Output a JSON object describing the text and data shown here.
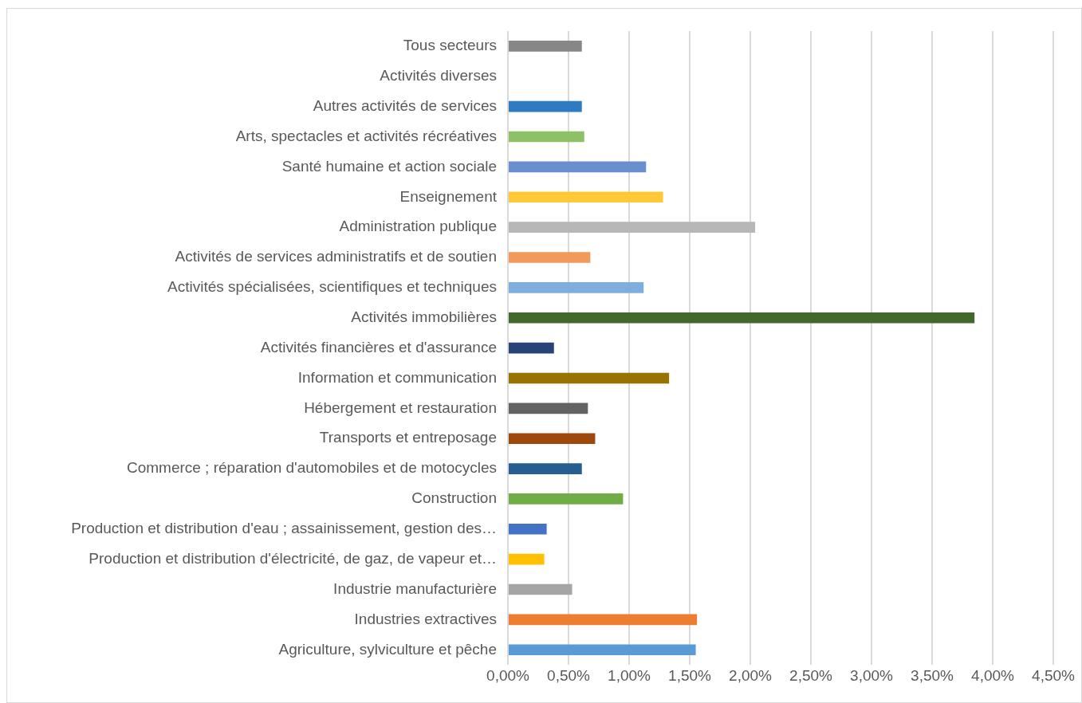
{
  "chart_data": {
    "type": "bar",
    "orientation": "horizontal",
    "categories": [
      "Tous secteurs",
      "Activités diverses",
      "Autres activités de services",
      "Arts, spectacles et activités récréatives",
      "Santé humaine et action sociale",
      "Enseignement",
      "Administration publique",
      "Activités de services administratifs et de soutien",
      "Activités spécialisées, scientifiques et techniques",
      "Activités immobilières",
      "Activités financières et d'assurance",
      "Information et communication",
      "Hébergement et restauration",
      "Transports et entreposage",
      "Commerce ; réparation d'automobiles et de motocycles",
      "Construction",
      "Production et distribution d'eau ; assainissement, gestion des…",
      "Production et distribution d'électricité, de gaz, de vapeur et…",
      "Industrie manufacturière",
      "Industries extractives",
      "Agriculture, sylviculture et pêche"
    ],
    "values": [
      0.61,
      null,
      0.61,
      0.63,
      1.14,
      1.28,
      2.04,
      0.68,
      1.12,
      3.85,
      0.38,
      1.33,
      0.66,
      0.72,
      0.61,
      0.95,
      0.32,
      0.3,
      0.53,
      1.56,
      1.55
    ],
    "colors": [
      "#878787",
      "#a5a5a5",
      "#2e7bc4",
      "#8cc168",
      "#6a8fcf",
      "#ffc936",
      "#b7b7b7",
      "#f29a5c",
      "#7eaedd",
      "#43682b",
      "#264478",
      "#997300",
      "#636363",
      "#9e480e",
      "#255e91",
      "#70ad47",
      "#4472c4",
      "#ffc000",
      "#a5a5a5",
      "#ed7d31",
      "#5b9bd5"
    ],
    "xlim": [
      0,
      4.5
    ],
    "xticks": [
      {
        "value": 0,
        "label": "0,00%"
      },
      {
        "value": 0.5,
        "label": "0,50%"
      },
      {
        "value": 1,
        "label": "1,00%"
      },
      {
        "value": 1.5,
        "label": "1,50%"
      },
      {
        "value": 2,
        "label": "2,00%"
      },
      {
        "value": 2.5,
        "label": "2,50%"
      },
      {
        "value": 3,
        "label": "3,00%"
      },
      {
        "value": 3.5,
        "label": "3,50%"
      },
      {
        "value": 4,
        "label": "4,00%"
      },
      {
        "value": 4.5,
        "label": "4,50%"
      }
    ],
    "grid": "x",
    "legend": false
  }
}
